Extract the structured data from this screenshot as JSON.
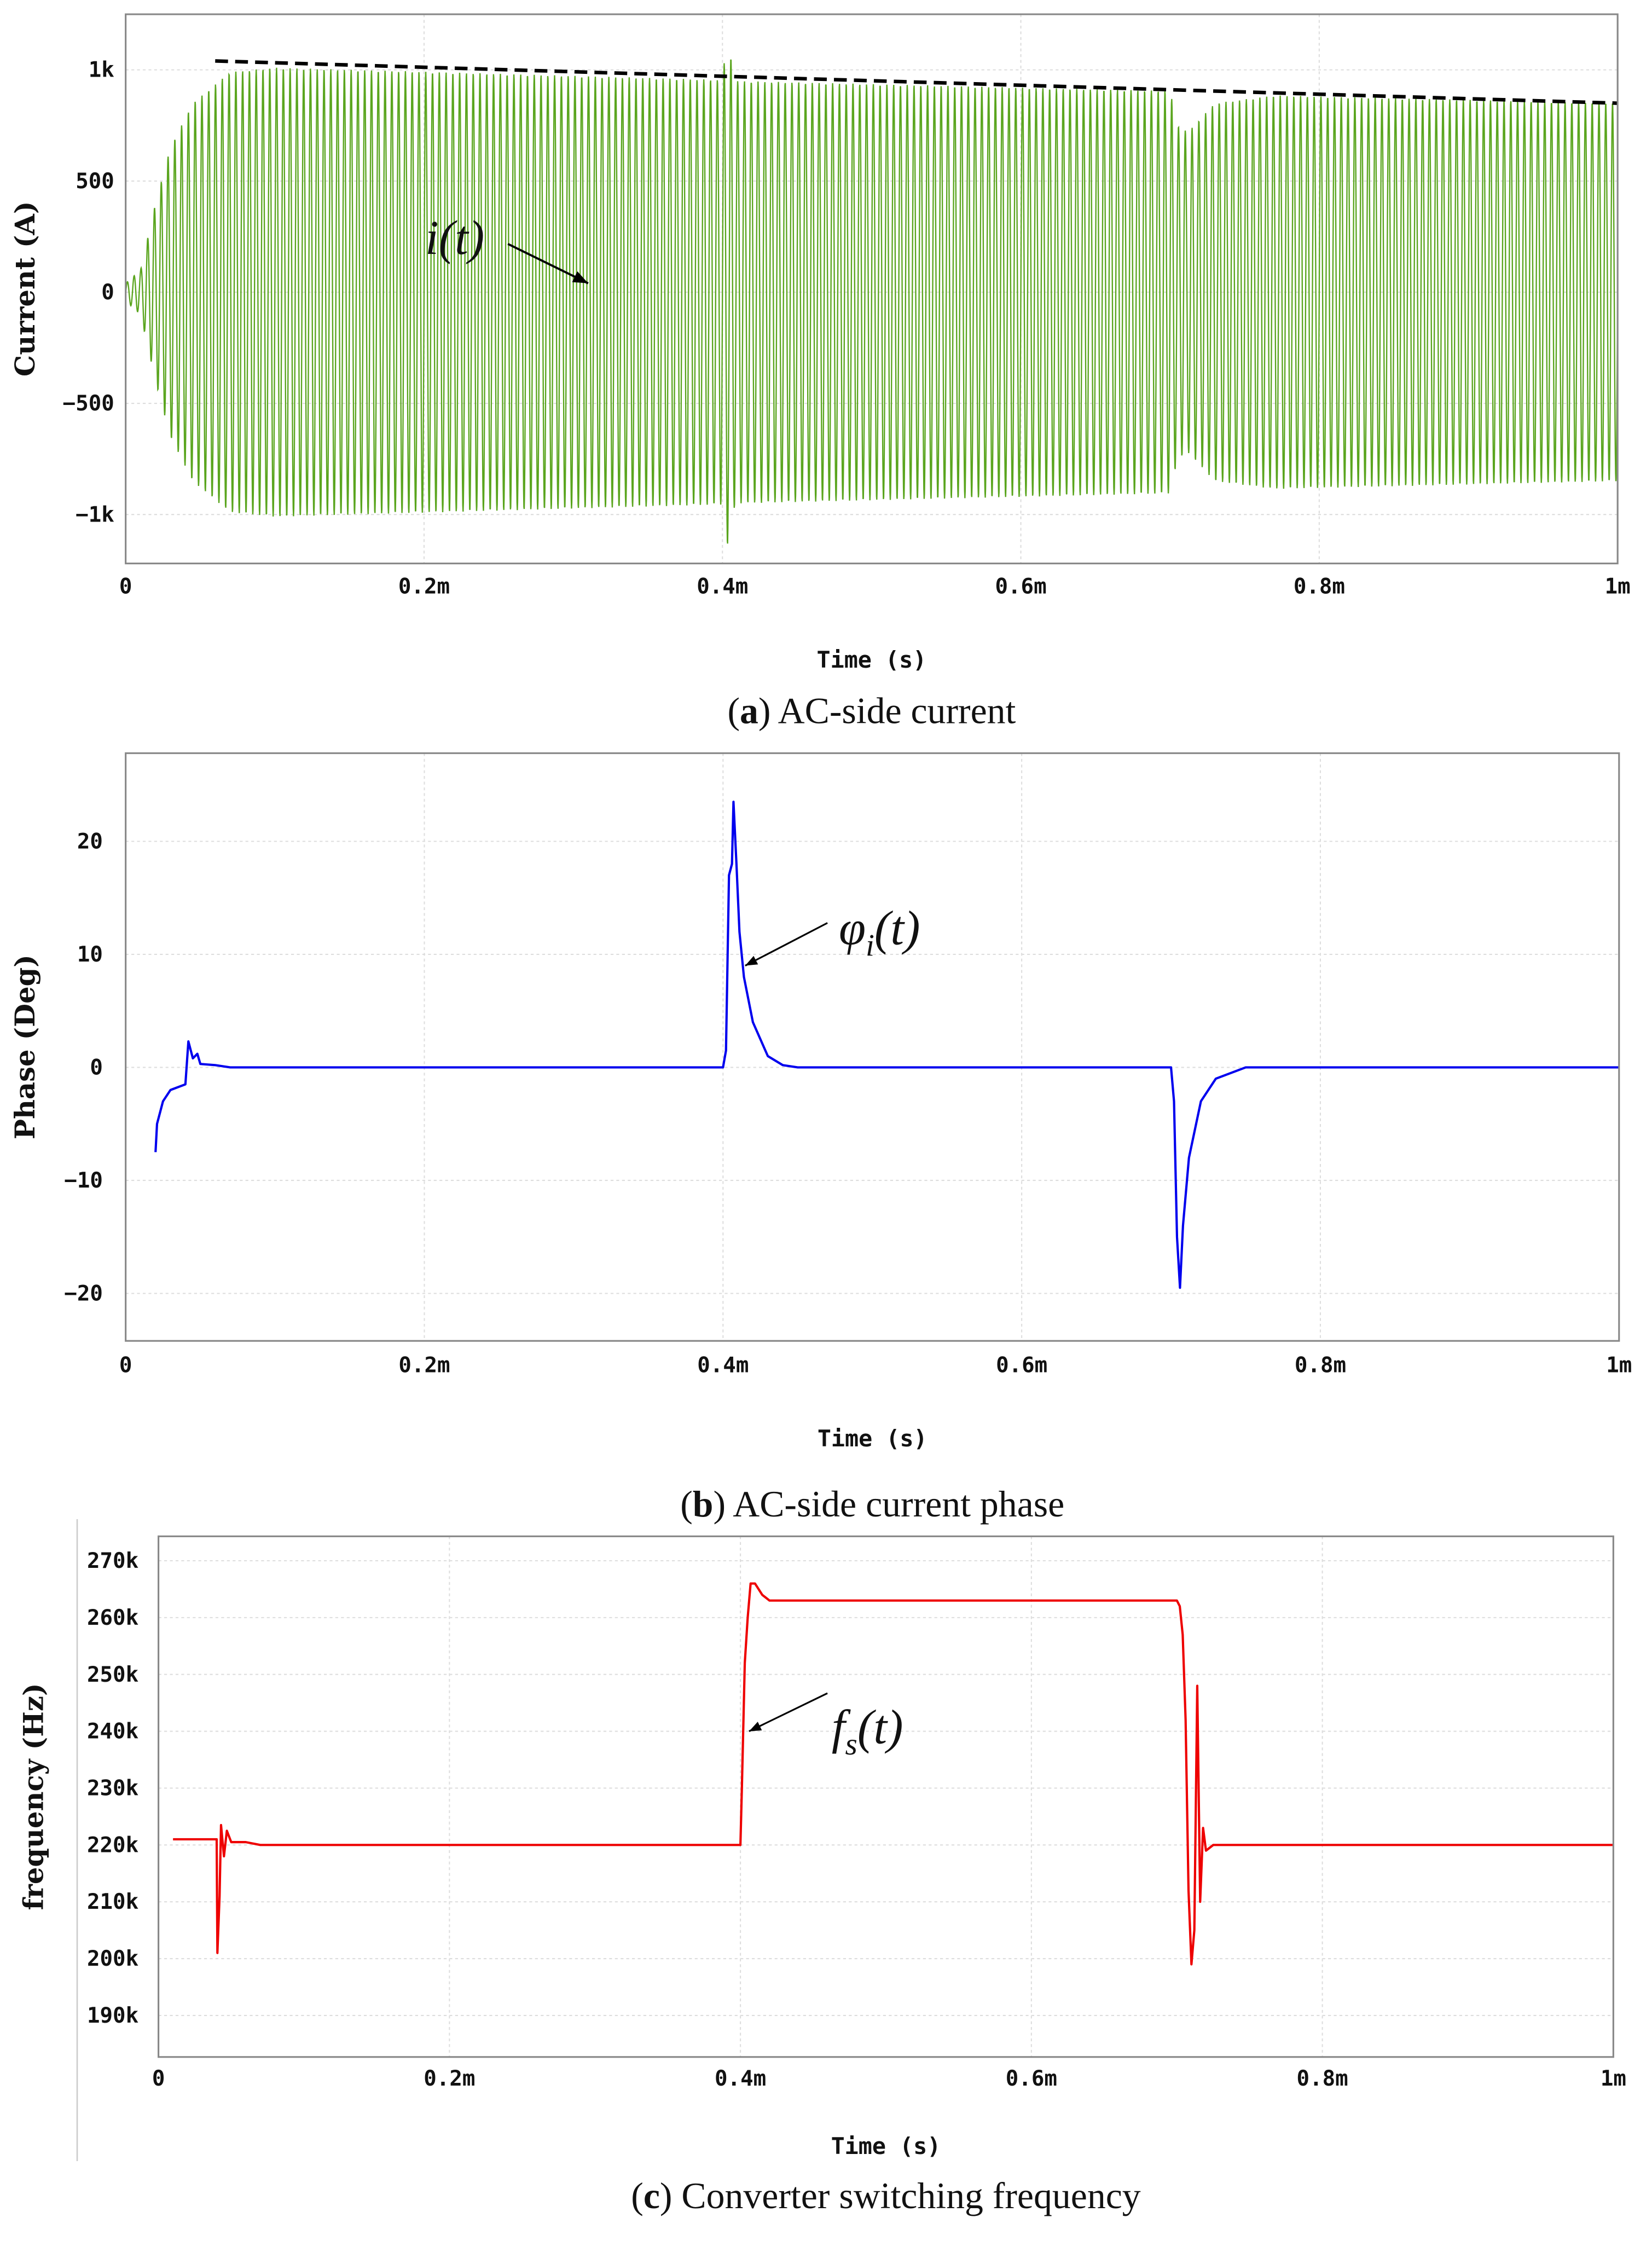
{
  "chart_data": [
    {
      "type": "line",
      "caption_label": "a",
      "caption_text": "AC-side current",
      "xlabel": "Time (s)",
      "ylabel": "Current (A)",
      "xlim": [
        0,
        1
      ],
      "ylim": [
        -1220,
        1250
      ],
      "x_unit": "ms",
      "xticks": [
        {
          "v": 0,
          "label": "0"
        },
        {
          "v": 0.2,
          "label": "0.2m"
        },
        {
          "v": 0.4,
          "label": "0.4m"
        },
        {
          "v": 0.6,
          "label": "0.6m"
        },
        {
          "v": 0.8,
          "label": "0.8m"
        },
        {
          "v": 1,
          "label": "1m"
        }
      ],
      "yticks": [
        {
          "v": 1000,
          "label": "1k"
        },
        {
          "v": 500,
          "label": "500"
        },
        {
          "v": 0,
          "label": "0"
        },
        {
          "v": -500,
          "label": "-500"
        },
        {
          "v": -1000,
          "label": "-1k"
        }
      ],
      "grid": true,
      "series": [
        {
          "name": "i(t)",
          "color": "#5aa51e",
          "oscillation_cycles_per_ms": 220,
          "envelope": [
            [
              0,
              40
            ],
            [
              0.01,
              100
            ],
            [
              0.02,
              400
            ],
            [
              0.03,
              650
            ],
            [
              0.045,
              850
            ],
            [
              0.07,
              990
            ],
            [
              0.1,
              1010
            ],
            [
              0.4,
              955
            ],
            [
              0.403,
              1150
            ],
            [
              0.408,
              970
            ],
            [
              0.41,
              950
            ],
            [
              0.7,
              905
            ],
            [
              0.705,
              750
            ],
            [
              0.712,
              720
            ],
            [
              0.73,
              850
            ],
            [
              0.77,
              885
            ],
            [
              1.0,
              850
            ]
          ]
        }
      ],
      "dashed_line": {
        "color": "#000000",
        "points": [
          [
            0.06,
            1040
          ],
          [
            1.0,
            850
          ]
        ]
      },
      "annotation": {
        "text": "i(t)",
        "arrow_to": [
          0.31,
          40
        ]
      }
    },
    {
      "type": "line",
      "caption_label": "b",
      "caption_text": "AC-side current phase",
      "xlabel": "Time (s)",
      "ylabel": "Phase (Deg)",
      "xlim": [
        0,
        1
      ],
      "ylim": [
        -24.2,
        27.8
      ],
      "x_unit": "ms",
      "xticks": [
        {
          "v": 0,
          "label": "0"
        },
        {
          "v": 0.2,
          "label": "0.2m"
        },
        {
          "v": 0.4,
          "label": "0.4m"
        },
        {
          "v": 0.6,
          "label": "0.6m"
        },
        {
          "v": 0.8,
          "label": "0.8m"
        },
        {
          "v": 1,
          "label": "1m"
        }
      ],
      "yticks": [
        {
          "v": 20,
          "label": "20"
        },
        {
          "v": 10,
          "label": "10"
        },
        {
          "v": 0,
          "label": "0"
        },
        {
          "v": -10,
          "label": "-10"
        },
        {
          "v": -20,
          "label": "-20"
        }
      ],
      "grid": true,
      "series": [
        {
          "name": "φi(t)",
          "color": "#0000ee",
          "points": [
            [
              0.02,
              -7.5
            ],
            [
              0.021,
              -5
            ],
            [
              0.025,
              -3
            ],
            [
              0.03,
              -2
            ],
            [
              0.04,
              -1.5
            ],
            [
              0.042,
              2.3
            ],
            [
              0.045,
              0.8
            ],
            [
              0.048,
              1.2
            ],
            [
              0.05,
              0.3
            ],
            [
              0.06,
              0.2
            ],
            [
              0.07,
              0
            ],
            [
              0.4,
              0
            ],
            [
              0.402,
              1.5
            ],
            [
              0.404,
              17
            ],
            [
              0.406,
              18
            ],
            [
              0.407,
              23.5
            ],
            [
              0.409,
              18
            ],
            [
              0.411,
              12
            ],
            [
              0.414,
              8
            ],
            [
              0.42,
              4
            ],
            [
              0.43,
              1
            ],
            [
              0.44,
              0.2
            ],
            [
              0.45,
              0
            ],
            [
              0.7,
              0
            ],
            [
              0.702,
              -3
            ],
            [
              0.704,
              -15
            ],
            [
              0.706,
              -19.5
            ],
            [
              0.708,
              -14
            ],
            [
              0.712,
              -8
            ],
            [
              0.72,
              -3
            ],
            [
              0.73,
              -1
            ],
            [
              0.75,
              0
            ],
            [
              1.0,
              0
            ]
          ]
        }
      ],
      "annotation": {
        "text_main": "φ",
        "text_sub": "i",
        "text_tail": "(t)",
        "arrow_to": [
          0.412,
          9
        ]
      }
    },
    {
      "type": "line",
      "caption_label": "c",
      "caption_text": "Converter switching frequency",
      "xlabel": "Time (s)",
      "ylabel": "frequency (Hz)",
      "xlim": [
        0,
        1
      ],
      "ylim": [
        182.7,
        274.3
      ],
      "x_unit": "ms",
      "y_unit": "kHz",
      "xticks": [
        {
          "v": 0,
          "label": "0"
        },
        {
          "v": 0.2,
          "label": "0.2m"
        },
        {
          "v": 0.4,
          "label": "0.4m"
        },
        {
          "v": 0.6,
          "label": "0.6m"
        },
        {
          "v": 0.8,
          "label": "0.8m"
        },
        {
          "v": 1,
          "label": "1m"
        }
      ],
      "yticks": [
        {
          "v": 270,
          "label": "270k"
        },
        {
          "v": 260,
          "label": "260k"
        },
        {
          "v": 250,
          "label": "250k"
        },
        {
          "v": 240,
          "label": "240k"
        },
        {
          "v": 230,
          "label": "230k"
        },
        {
          "v": 220,
          "label": "220k"
        },
        {
          "v": 210,
          "label": "210k"
        },
        {
          "v": 200,
          "label": "200k"
        },
        {
          "v": 190,
          "label": "190k"
        }
      ],
      "grid": true,
      "series": [
        {
          "name": "fs(t)",
          "color": "#ee0000",
          "points": [
            [
              0.01,
              221
            ],
            [
              0.04,
              221
            ],
            [
              0.0405,
              201
            ],
            [
              0.042,
              211
            ],
            [
              0.043,
              223.5
            ],
            [
              0.045,
              218
            ],
            [
              0.047,
              222.5
            ],
            [
              0.05,
              220.5
            ],
            [
              0.06,
              220.5
            ],
            [
              0.07,
              220
            ],
            [
              0.4,
              220
            ],
            [
              0.401,
              230
            ],
            [
              0.403,
              252
            ],
            [
              0.405,
              260
            ],
            [
              0.407,
              266
            ],
            [
              0.41,
              266
            ],
            [
              0.415,
              264
            ],
            [
              0.42,
              263
            ],
            [
              0.7,
              263
            ],
            [
              0.702,
              262
            ],
            [
              0.704,
              257
            ],
            [
              0.706,
              242
            ],
            [
              0.708,
              212
            ],
            [
              0.71,
              199
            ],
            [
              0.712,
              205
            ],
            [
              0.714,
              248
            ],
            [
              0.716,
              210
            ],
            [
              0.718,
              223
            ],
            [
              0.72,
              219
            ],
            [
              0.725,
              220
            ],
            [
              1.0,
              220
            ]
          ]
        }
      ],
      "annotation": {
        "text_main": "f",
        "text_sub": "s",
        "text_tail": "(t)",
        "arrow_to": [
          0.403,
          240
        ]
      }
    }
  ]
}
